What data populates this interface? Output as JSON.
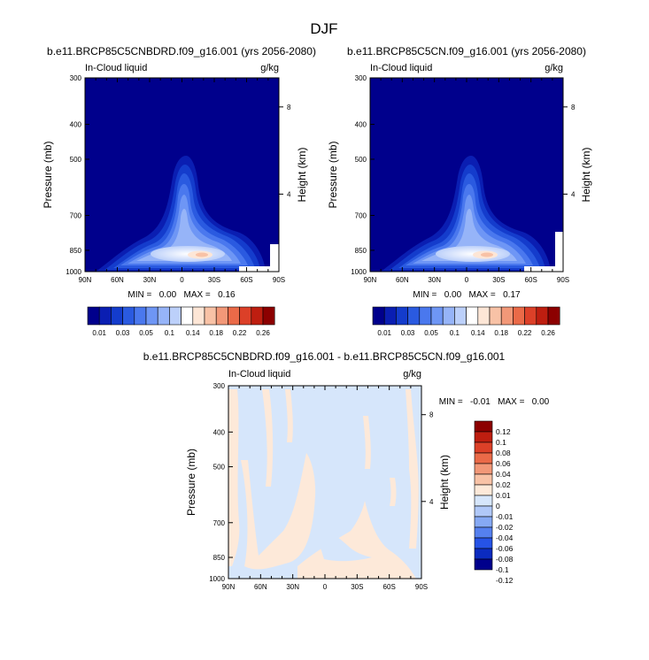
{
  "figure_title": "DJF",
  "colors": {
    "seq": [
      "#00008c",
      "#0a1eb2",
      "#143ccc",
      "#2a5ae0",
      "#4a78ee",
      "#6e96f5",
      "#96b4f8",
      "#bcd0fa",
      "#ffffff",
      "#fde6d6",
      "#f8c2a6",
      "#f29878",
      "#ea6a48",
      "#dc4028",
      "#be1e10",
      "#8c0000"
    ],
    "diff": [
      "#00008c",
      "#0b2bbf",
      "#2653e6",
      "#5580ef",
      "#86a9f4",
      "#b0c8f8",
      "#d6e6fb",
      "#fde9d9",
      "#f8c2a6",
      "#f29878",
      "#ea6a48",
      "#dc4028",
      "#be1e10",
      "#8c0000"
    ]
  },
  "chart_data": [
    {
      "type": "heatmap",
      "subtitle": "b.e11.BRCP85C5CNBDRD.f09_g16.001 (yrs 2056-2080)",
      "field_label": "In-Cloud liquid",
      "units": "g/kg",
      "ylabel": "Pressure (mb)",
      "ylabel_right": "Height (km)",
      "x_ticks": [
        "90N",
        "60N",
        "30N",
        "0",
        "30S",
        "60S",
        "90S"
      ],
      "y_ticks": [
        "300",
        "400",
        "500",
        "700",
        "850",
        "1000"
      ],
      "y_ticks_right": [
        "8",
        "4"
      ],
      "min_text": "MIN =   0.00   MAX =   0.16",
      "levels": [
        "0.01",
        "0.03",
        "0.05",
        "0.1",
        "0.14",
        "0.18",
        "0.22",
        "0.26"
      ]
    },
    {
      "type": "heatmap",
      "subtitle": "b.e11.BRCP85C5CN.f09_g16.001 (yrs 2056-2080)",
      "field_label": "In-Cloud liquid",
      "units": "g/kg",
      "ylabel": "Pressure (mb)",
      "ylabel_right": "Height (km)",
      "x_ticks": [
        "90N",
        "60N",
        "30N",
        "0",
        "30S",
        "60S",
        "90S"
      ],
      "y_ticks": [
        "300",
        "400",
        "500",
        "700",
        "850",
        "1000"
      ],
      "y_ticks_right": [
        "8",
        "4"
      ],
      "min_text": "MIN =   0.00   MAX =   0.17",
      "levels": [
        "0.01",
        "0.03",
        "0.05",
        "0.1",
        "0.14",
        "0.18",
        "0.22",
        "0.26"
      ]
    },
    {
      "type": "heatmap",
      "subtitle": "b.e11.BRCP85C5CNBDRD.f09_g16.001 - b.e11.BRCP85C5CN.f09_g16.001",
      "field_label": "In-Cloud liquid",
      "units": "g/kg",
      "ylabel": "Pressure (mb)",
      "ylabel_right": "Height (km)",
      "x_ticks": [
        "90N",
        "60N",
        "30N",
        "0",
        "30S",
        "60S",
        "90S"
      ],
      "y_ticks": [
        "300",
        "400",
        "500",
        "700",
        "850",
        "1000"
      ],
      "y_ticks_right": [
        "8",
        "4"
      ],
      "min_text": "MIN =   -0.01   MAX =   0.00",
      "levels": [
        "0.12",
        "0.1",
        "0.08",
        "0.06",
        "0.04",
        "0.02",
        "0.01",
        "0",
        "-0.01",
        "-0.02",
        "-0.04",
        "-0.06",
        "-0.08",
        "-0.1",
        "-0.12"
      ]
    }
  ]
}
